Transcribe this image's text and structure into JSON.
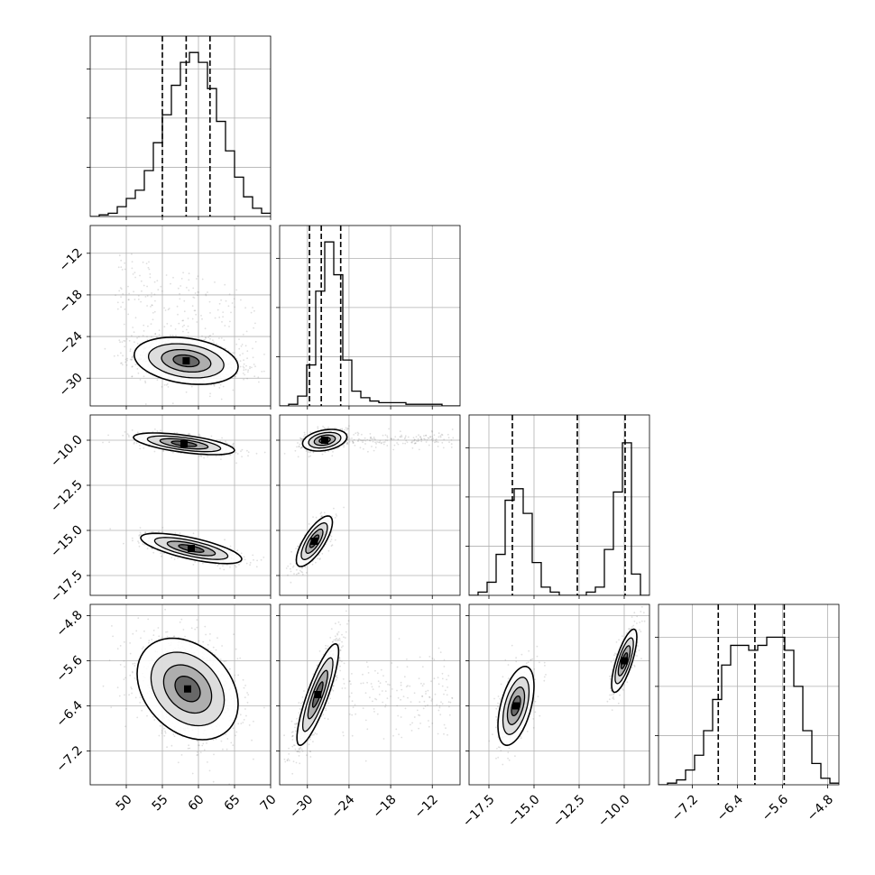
{
  "chart_data": {
    "type": "corner",
    "grid": true,
    "colors": {
      "line": "#000000",
      "grid": "#b0b0b0",
      "scatter": "#7f7f7f",
      "background": "#ffffff"
    },
    "parameters": [
      {
        "range": [
          45,
          70
        ],
        "ticks": [
          50,
          55,
          60,
          65,
          70
        ],
        "tick_labels": [
          "50",
          "55",
          "60",
          "65",
          "70"
        ]
      },
      {
        "range": [
          -34,
          -8
        ],
        "ticks": [
          -30,
          -24,
          -18,
          -12
        ],
        "tick_labels": [
          "−30",
          "−24",
          "−18",
          "−12"
        ]
      },
      {
        "range": [
          -18.6,
          -8.6
        ],
        "ticks": [
          -17.5,
          -15.0,
          -12.5,
          -10.0
        ],
        "tick_labels": [
          "−17.5",
          "−15.0",
          "−12.5",
          "−10.0"
        ]
      },
      {
        "range": [
          -7.8,
          -4.6
        ],
        "ticks": [
          -7.2,
          -6.4,
          -5.6,
          -4.8
        ],
        "tick_labels": [
          "−7.2",
          "−6.4",
          "−5.6",
          "−4.8"
        ]
      }
    ],
    "histograms": [
      {
        "bins": [
          45.0,
          46.25,
          47.5,
          48.75,
          50.0,
          51.25,
          52.5,
          53.75,
          55.0,
          56.25,
          57.5,
          58.75,
          60.0,
          61.25,
          62.5,
          63.75,
          65.0,
          66.25,
          67.5,
          68.75,
          70.0
        ],
        "counts": [
          0.0,
          0.01,
          0.02,
          0.06,
          0.11,
          0.16,
          0.28,
          0.45,
          0.62,
          0.8,
          0.94,
          1.0,
          0.94,
          0.78,
          0.58,
          0.4,
          0.24,
          0.12,
          0.05,
          0.02
        ],
        "quantiles": [
          55.0,
          58.3,
          61.6
        ]
      },
      {
        "bins": [
          -34.0,
          -32.7,
          -31.4,
          -30.1,
          -28.8,
          -27.5,
          -26.2,
          -24.9,
          -23.6,
          -22.3,
          -21.0,
          -19.7,
          -18.4,
          -17.1,
          -15.8,
          -14.5,
          -13.2,
          -11.9,
          -10.6,
          -9.3,
          -8.0
        ],
        "counts": [
          0.0,
          0.01,
          0.06,
          0.25,
          0.7,
          1.0,
          0.8,
          0.28,
          0.09,
          0.05,
          0.03,
          0.02,
          0.02,
          0.02,
          0.01,
          0.01,
          0.01,
          0.01,
          0.0,
          0.0
        ],
        "quantiles": [
          -29.7,
          -28.0,
          -25.2
        ]
      },
      {
        "bins": [
          -18.6,
          -18.1,
          -17.6,
          -17.1,
          -16.6,
          -16.1,
          -15.6,
          -15.1,
          -14.6,
          -14.1,
          -13.6,
          -13.1,
          -12.6,
          -12.1,
          -11.6,
          -11.1,
          -10.6,
          -10.1,
          -9.6,
          -9.1,
          -8.6
        ],
        "counts": [
          0.0,
          0.02,
          0.08,
          0.25,
          0.58,
          0.65,
          0.5,
          0.2,
          0.05,
          0.02,
          0.0,
          0.0,
          0.0,
          0.02,
          0.05,
          0.28,
          0.63,
          0.93,
          0.13,
          0.0
        ],
        "quantiles": [
          -16.2,
          -12.6,
          -9.95
        ]
      },
      {
        "bins": [
          -7.8,
          -7.64,
          -7.48,
          -7.32,
          -7.16,
          -7.0,
          -6.84,
          -6.68,
          -6.52,
          -6.36,
          -6.2,
          -6.04,
          -5.88,
          -5.72,
          -5.56,
          -5.4,
          -5.24,
          -5.08,
          -4.92,
          -4.76,
          -4.6
        ],
        "counts": [
          0.0,
          0.01,
          0.03,
          0.09,
          0.18,
          0.33,
          0.52,
          0.73,
          0.85,
          0.85,
          0.82,
          0.85,
          0.9,
          0.9,
          0.82,
          0.6,
          0.33,
          0.13,
          0.04,
          0.01
        ],
        "quantiles": [
          -6.74,
          -6.09,
          -5.57
        ]
      }
    ],
    "joint_distributions": [
      {
        "x_param": 0,
        "y_param": 1,
        "modes": [
          {
            "weight": 1.0,
            "mean": [
              58.3,
              -27.5
            ],
            "std": [
              3.6,
              1.7
            ],
            "corr": -0.25
          }
        ],
        "outlier_tail": true
      },
      {
        "x_param": 0,
        "y_param": 2,
        "modes": [
          {
            "weight": 0.48,
            "mean": [
              58.0,
              -10.2
            ],
            "std": [
              3.5,
              0.3
            ],
            "corr": -0.6
          },
          {
            "weight": 0.52,
            "mean": [
              59.0,
              -16.0
            ],
            "std": [
              3.5,
              0.42
            ],
            "corr": -0.7
          }
        ]
      },
      {
        "x_param": 0,
        "y_param": 3,
        "modes": [
          {
            "weight": 1.0,
            "mean": [
              58.5,
              -6.1
            ],
            "std": [
              3.5,
              0.45
            ],
            "corr": -0.3
          }
        ]
      },
      {
        "x_param": 1,
        "y_param": 2,
        "modes": [
          {
            "weight": 0.48,
            "mean": [
              -27.5,
              -10.0
            ],
            "std": [
              1.6,
              0.3
            ],
            "corr": 0.3
          },
          {
            "weight": 0.52,
            "mean": [
              -29.0,
              -15.6
            ],
            "std": [
              1.3,
              0.7
            ],
            "corr": 0.75
          }
        ]
      },
      {
        "x_param": 1,
        "y_param": 3,
        "modes": [
          {
            "weight": 1.0,
            "mean": [
              -28.5,
              -6.2
            ],
            "std": [
              1.5,
              0.45
            ],
            "corr": 0.85
          }
        ]
      },
      {
        "x_param": 2,
        "y_param": 3,
        "modes": [
          {
            "weight": 0.5,
            "mean": [
              -16.0,
              -6.4
            ],
            "std": [
              0.5,
              0.35
            ],
            "corr": 0.5
          },
          {
            "weight": 0.5,
            "mean": [
              -10.0,
              -5.6
            ],
            "std": [
              0.35,
              0.28
            ],
            "corr": 0.75
          }
        ]
      }
    ]
  }
}
